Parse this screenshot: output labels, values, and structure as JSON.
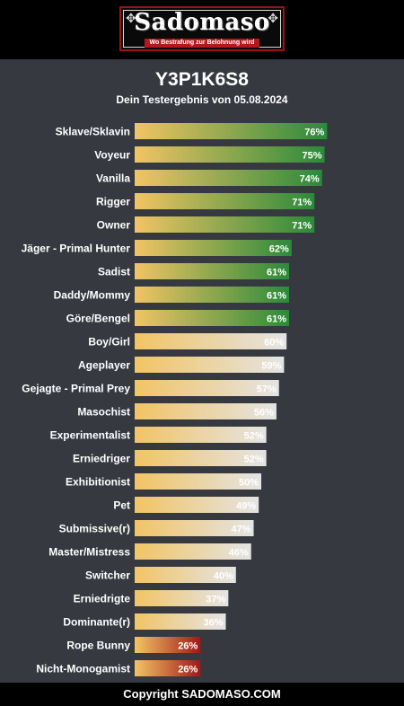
{
  "header": {
    "logo_text": "Sadomaso",
    "logo_tagline": "Wo Bestrafung zur Belohnung wird"
  },
  "title": "Y3P1K6S8",
  "subtitle": "Dein Testergebnis von 05.08.2024",
  "footer": {
    "copyright": "Copyright SADOMASO.COM"
  },
  "colors": {
    "background": "#363a40",
    "bar_start": "#f2c464",
    "green_end": "#2a8a3a",
    "neutral_end": "#e4e4e4",
    "red_end": "#a01818"
  },
  "chart_data": {
    "type": "bar",
    "orientation": "horizontal",
    "xlim": [
      0,
      100
    ],
    "unit": "%",
    "categories": [
      "Sklave/Sklavin",
      "Voyeur",
      "Vanilla",
      "Rigger",
      "Owner",
      "Jäger - Primal Hunter",
      "Sadist",
      "Daddy/Mommy",
      "Göre/Bengel",
      "Boy/Girl",
      "Ageplayer",
      "Gejagte - Primal Prey",
      "Masochist",
      "Experimentalist",
      "Erniedriger",
      "Exhibitionist",
      "Pet",
      "Submissive(r)",
      "Master/Mistress",
      "Switcher",
      "Erniedrigte",
      "Dominante(r)",
      "Rope Bunny",
      "Nicht-Monogamist"
    ],
    "values": [
      76,
      75,
      74,
      71,
      71,
      62,
      61,
      61,
      61,
      60,
      59,
      57,
      56,
      52,
      52,
      50,
      49,
      47,
      46,
      40,
      37,
      36,
      26,
      26
    ],
    "value_labels": [
      "76%",
      "75%",
      "74%",
      "71%",
      "71%",
      "62%",
      "61%",
      "61%",
      "61%",
      "60%",
      "59%",
      "57%",
      "56%",
      "52%",
      "52%",
      "50%",
      "49%",
      "47%",
      "46%",
      "40%",
      "37%",
      "36%",
      "26%",
      "26%"
    ],
    "bar_groups": [
      "green",
      "green",
      "green",
      "green",
      "green",
      "green",
      "green",
      "green",
      "green",
      "neutral",
      "neutral",
      "neutral",
      "neutral",
      "neutral",
      "neutral",
      "neutral",
      "neutral",
      "neutral",
      "neutral",
      "neutral",
      "neutral",
      "neutral",
      "red",
      "red"
    ]
  }
}
